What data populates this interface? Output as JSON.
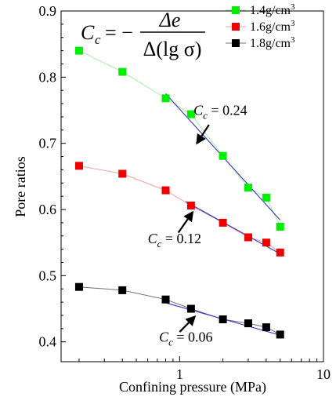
{
  "chart_data": {
    "type": "scatter",
    "xlabel": "Confining pressure (MPa)",
    "ylabel": "Pore ratios",
    "xscale": "log",
    "xlim": [
      0.15,
      10
    ],
    "ylim": [
      0.37,
      0.9
    ],
    "x_ticks": [
      {
        "value": 1,
        "label": "1"
      },
      {
        "value": 10,
        "label": "10"
      }
    ],
    "y_ticks": [
      {
        "value": 0.4,
        "label": "0.4"
      },
      {
        "value": 0.5,
        "label": "0.5"
      },
      {
        "value": 0.6,
        "label": "0.6"
      },
      {
        "value": 0.7,
        "label": "0.7"
      },
      {
        "value": 0.8,
        "label": "0.8"
      },
      {
        "value": 0.9,
        "label": "0.9"
      }
    ],
    "x": [
      0.2,
      0.4,
      0.8,
      1.2,
      2,
      3,
      4,
      5
    ],
    "series": [
      {
        "name": "1.4g/cm",
        "sup": "3",
        "color": "#00ee00",
        "line_color": "#a6f0a6",
        "values": [
          0.84,
          0.808,
          0.768,
          0.744,
          0.681,
          0.633,
          0.618,
          0.574
        ]
      },
      {
        "name": "1.6g/cm",
        "sup": "3",
        "color": "#ee0000",
        "line_color": "#f4a0a0",
        "values": [
          0.666,
          0.654,
          0.629,
          0.606,
          0.58,
          0.558,
          0.55,
          0.535
        ]
      },
      {
        "name": "1.8g/cm",
        "sup": "3",
        "color": "#000000",
        "line_color": "#707070",
        "values": [
          0.483,
          0.478,
          0.464,
          0.45,
          0.434,
          0.428,
          0.422,
          0.411
        ]
      }
    ],
    "fit_lines": [
      {
        "color": "#3333cc",
        "x": [
          0.8,
          5
        ],
        "y": [
          0.775,
          0.584
        ]
      },
      {
        "color": "#3333cc",
        "x": [
          1.1,
          5
        ],
        "y": [
          0.612,
          0.533
        ]
      },
      {
        "color": "#3333cc",
        "x": [
          0.8,
          5
        ],
        "y": [
          0.459,
          0.41
        ]
      }
    ],
    "annotations": [
      {
        "base": "C",
        "sub": "c",
        "rest": " = 0.24",
        "text_x": 1.25,
        "text_y": 0.743,
        "arrow_from": [
          1.6,
          0.728
        ],
        "arrow_to": [
          1.3,
          0.698
        ]
      },
      {
        "base": "C",
        "sub": "c",
        "rest": " = 0.12",
        "text_x": 0.6,
        "text_y": 0.549,
        "arrow_from": [
          0.98,
          0.565
        ],
        "arrow_to": [
          1.25,
          0.598
        ]
      },
      {
        "base": "C",
        "sub": "c",
        "rest": " = 0.06",
        "text_x": 0.72,
        "text_y": 0.4,
        "arrow_from": [
          1.0,
          0.415
        ],
        "arrow_to": [
          1.3,
          0.44
        ]
      }
    ],
    "formula": {
      "lhs_base": "C",
      "lhs_sub": "c",
      "equals": "= −",
      "numerator": "Δe",
      "denominator": "Δ(lg σ)"
    },
    "legend_position": "top-right",
    "grid": false
  }
}
